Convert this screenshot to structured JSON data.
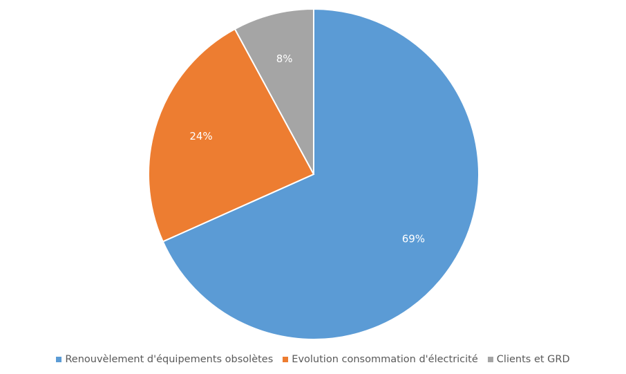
{
  "chart_data": {
    "type": "pie",
    "slices": [
      {
        "label": "Renouvèlement d'équipements obsolètes",
        "value": 69,
        "display": "69%",
        "color": "#5B9BD5"
      },
      {
        "label": "Evolution consommation d'électricité",
        "value": 24,
        "display": "24%",
        "color": "#ED7D31"
      },
      {
        "label": "Clients et GRD",
        "value": 8,
        "display": "8%",
        "color": "#A5A5A5"
      }
    ],
    "start_angle": "12 o'clock",
    "direction": "clockwise",
    "legend_position": "bottom"
  }
}
